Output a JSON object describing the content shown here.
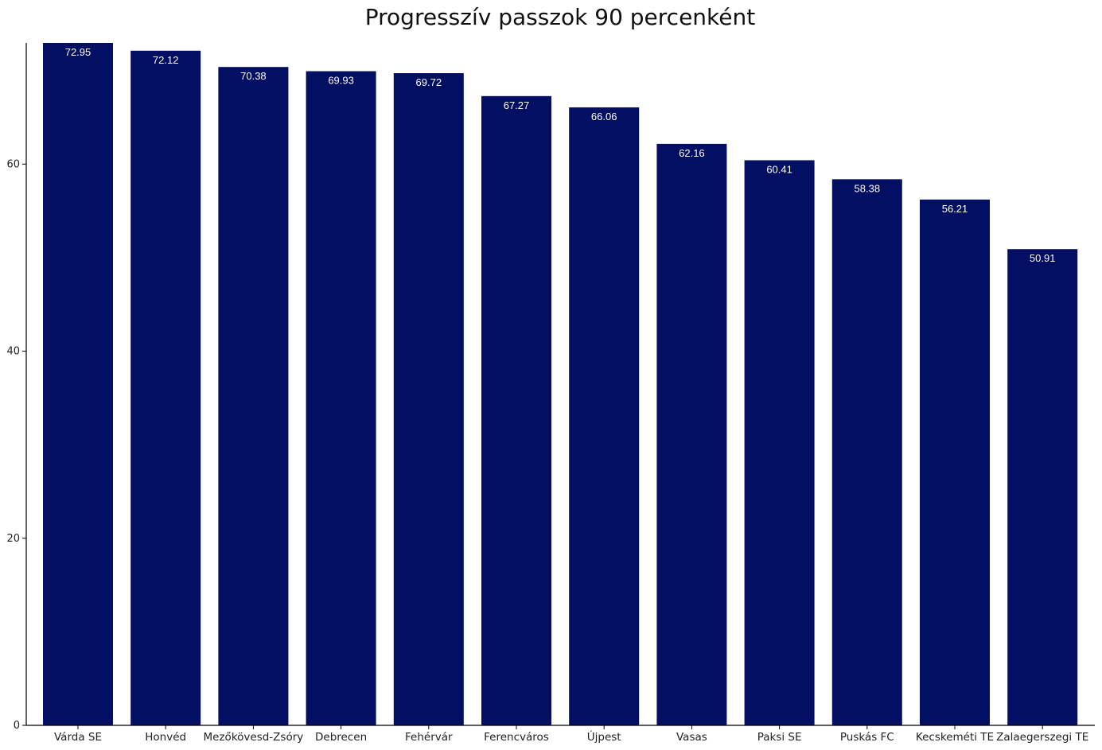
{
  "chart_data": {
    "type": "bar",
    "title": "Progresszív passzok 90 percenként",
    "xlabel": "",
    "ylabel": "",
    "categories": [
      "Várda SE",
      "Honvéd",
      "Mezőkövesd-Zsóry",
      "Debrecen",
      "Fehérvár",
      "Ferencváros",
      "Újpest",
      "Vasas",
      "Paksi SE",
      "Puskás FC",
      "Kecskeméti TE",
      "Zalaegerszegi TE"
    ],
    "values": [
      72.95,
      72.12,
      70.38,
      69.93,
      69.72,
      67.27,
      66.06,
      62.16,
      60.41,
      58.38,
      56.21,
      50.91
    ],
    "value_labels": [
      "72.95",
      "72.12",
      "70.38",
      "69.93",
      "69.72",
      "67.27",
      "66.06",
      "62.16",
      "60.41",
      "58.38",
      "56.21",
      "50.91"
    ],
    "ylim": [
      0,
      72.95
    ],
    "yticks": [
      0,
      20,
      40,
      60
    ],
    "ytick_labels": [
      "0",
      "20",
      "40",
      "60"
    ],
    "bar_color": "#020f62",
    "label_color": "#ffffff",
    "axis_color": "#000000",
    "grid": false,
    "legend": "none"
  }
}
